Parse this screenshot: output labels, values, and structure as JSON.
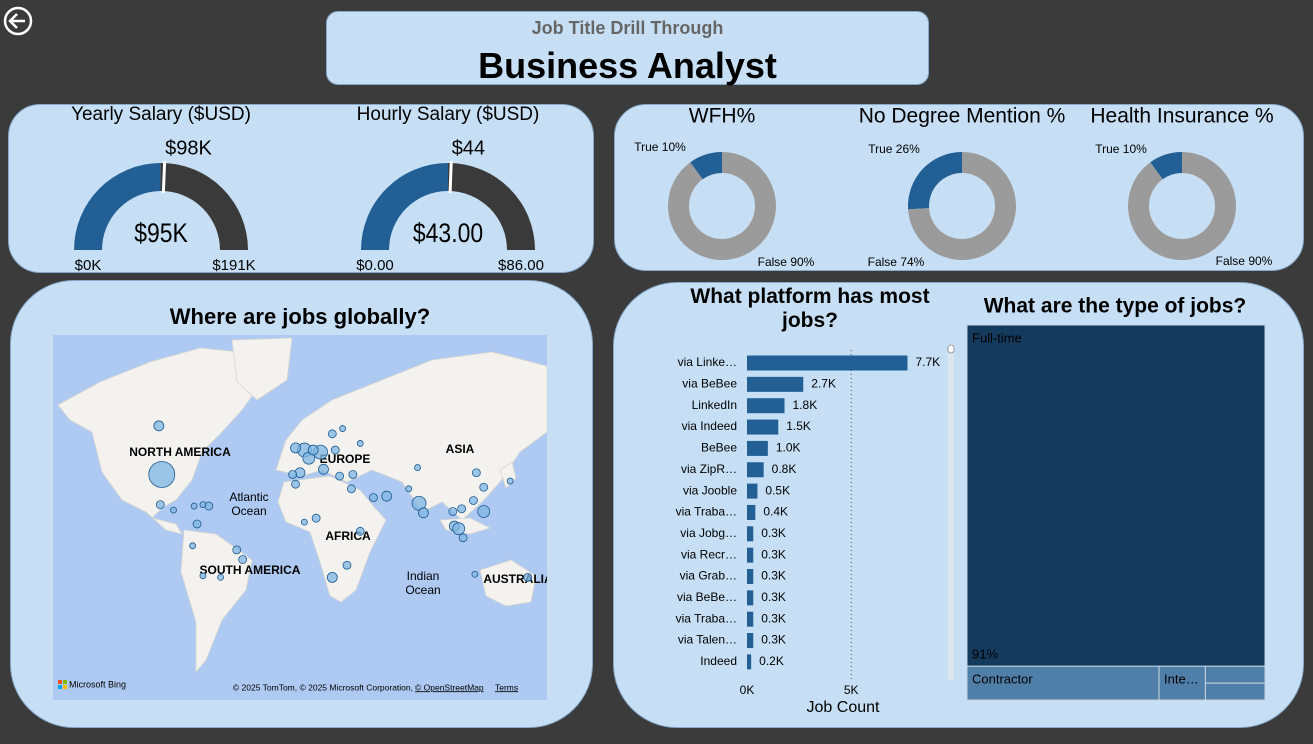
{
  "header": {
    "subtitle": "Job Title Drill Through",
    "title": "Business Analyst"
  },
  "chart_data": [
    {
      "type": "gauge",
      "title": "Yearly Salary ($USD)",
      "values": [
        95000
      ],
      "value_labels": [
        "$95K"
      ],
      "target": {
        "value": 98000,
        "label": "$98K"
      },
      "ylim": [
        0,
        191000
      ],
      "yticks": [
        {
          "value": 0,
          "label": "$0K"
        },
        {
          "value": 191000,
          "label": "$191K"
        }
      ],
      "colors": [
        "#215f95",
        "#3a3a3a"
      ]
    },
    {
      "type": "gauge",
      "title": "Hourly Salary ($USD)",
      "values": [
        43
      ],
      "value_labels": [
        "$43.00"
      ],
      "target": {
        "value": 44,
        "label": "$44"
      },
      "ylim": [
        0,
        86
      ],
      "yticks": [
        {
          "value": 0,
          "label": "$0.00"
        },
        {
          "value": 86,
          "label": "$86.00"
        }
      ],
      "colors": [
        "#215f95",
        "#3a3a3a"
      ]
    },
    {
      "type": "donut",
      "title": "WFH%",
      "values": [
        10,
        90
      ],
      "value_labels": [
        "True 10%",
        "False 90%"
      ],
      "colors": [
        "#215f95",
        "#9b9b9b"
      ]
    },
    {
      "type": "donut",
      "title": "No Degree Mention %",
      "values": [
        26,
        74
      ],
      "value_labels": [
        "True 26%",
        "False 74%"
      ],
      "colors": [
        "#215f95",
        "#9b9b9b"
      ]
    },
    {
      "type": "donut",
      "title": "Health Insurance %",
      "values": [
        10,
        90
      ],
      "value_labels": [
        "True 10%",
        "False 90%"
      ],
      "colors": [
        "#215f95",
        "#9b9b9b"
      ]
    },
    {
      "type": "bubble_map",
      "title": "Where are jobs globally?",
      "region_labels": [
        "NORTH AMERICA",
        "EUROPE",
        "ASIA",
        "AFRICA",
        "SOUTH AMERICA",
        "AUSTRALIA"
      ],
      "ocean_labels": [
        [
          "Atlantic",
          "Ocean"
        ],
        [
          "Indian",
          "Ocean"
        ]
      ],
      "logo": "Microsoft Bing",
      "attribution": [
        "© 2025 TomTom, © 2025 Microsoft Corporation,",
        "© OpenStreetMap",
        "Terms"
      ],
      "color": "#7db6e3",
      "x": [
        -98,
        -100,
        -99,
        -90,
        -74,
        -77,
        -47,
        -43,
        -58,
        -70,
        -66,
        -70,
        -76,
        -1,
        -7,
        2,
        10,
        5,
        -4,
        -9,
        12,
        20,
        18,
        25,
        23,
        32,
        31,
        -7,
        7,
        -1,
        37,
        28,
        18,
        55,
        46,
        77,
        80,
        70,
        116,
        121,
        139,
        121,
        106,
        100,
        101,
        104,
        107,
        151,
        115,
        37,
        76,
        114
      ],
      "y": [
        39,
        62,
        19,
        15,
        4.6,
        -12,
        -15,
        -22,
        -34,
        -33,
        18,
        19,
        18,
        52,
        53,
        48,
        51,
        52,
        40,
        39,
        42,
        52,
        59,
        61,
        38,
        39,
        30,
        33,
        9,
        6,
        -1,
        -26,
        -34,
        25,
        24,
        20,
        13,
        30,
        40,
        31,
        35,
        14,
        16,
        14,
        3,
        1,
        -6,
        -34,
        -32,
        55,
        43,
        22
      ],
      "sizes": [
        13,
        5,
        4,
        3,
        4,
        3,
        4,
        4,
        3,
        3,
        4,
        3,
        3,
        7,
        5,
        6,
        7,
        5,
        5,
        4,
        5,
        4,
        4,
        3,
        4,
        4,
        4,
        4,
        4,
        3,
        4,
        4,
        5,
        5,
        4,
        7,
        5,
        3,
        4,
        4,
        3,
        6,
        4,
        4,
        5,
        6,
        4,
        4,
        3,
        3,
        3,
        4
      ]
    },
    {
      "type": "hbar",
      "title": "What platform has most jobs?",
      "categories": [
        "via Linke…",
        "via BeBee",
        "LinkedIn",
        "via Indeed",
        "BeBee",
        "via ZipR…",
        "via Jooble",
        "via Traba…",
        "via Jobg…",
        "via Recr…",
        "via Grab…",
        "via BeBe…",
        "via Traba…",
        "via Talen…",
        "Indeed"
      ],
      "values": [
        7700,
        2700,
        1800,
        1500,
        1000,
        800,
        500,
        400,
        300,
        300,
        300,
        300,
        300,
        300,
        200
      ],
      "value_labels": [
        "7.7K",
        "2.7K",
        "1.8K",
        "1.5K",
        "1.0K",
        "0.8K",
        "0.5K",
        "0.4K",
        "0.3K",
        "0.3K",
        "0.3K",
        "0.3K",
        "0.3K",
        "0.3K",
        "0.2K"
      ],
      "xlim": [
        0,
        9500
      ],
      "xticks": [
        {
          "value": 0,
          "label": "0K"
        },
        {
          "value": 5000,
          "label": "5K"
        }
      ],
      "xlabel": "Job Count",
      "color": "#215f95",
      "grid": true
    },
    {
      "type": "treemap",
      "title": "What are the type of jobs?",
      "categories": [
        "Full-time",
        "Contractor",
        "Inte…",
        null,
        null
      ],
      "values": [
        91,
        5.8,
        1.4,
        0.9,
        0.9
      ],
      "value_labels": [
        "91%",
        null,
        null,
        null,
        null
      ],
      "colors": [
        "#143a5e",
        "#4f7ea8",
        "#4f7ea8",
        "#4f7ea8",
        "#4f7ea8"
      ]
    }
  ]
}
